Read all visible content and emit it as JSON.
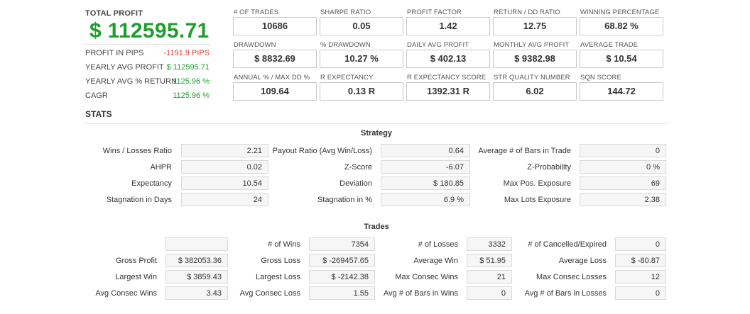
{
  "total_profit": {
    "title": "TOTAL PROFIT",
    "value": "$ 112595.71",
    "rows": [
      {
        "label": "PROFIT IN PIPS",
        "value": "-1191.9 PIPS",
        "tone": "neg"
      },
      {
        "label": "YEARLY AVG PROFIT",
        "value": "$ 112595.71",
        "tone": "pos"
      },
      {
        "label": "YEARLY AVG % RETURN",
        "value": "1125.96 %",
        "tone": "pos"
      },
      {
        "label": "CAGR",
        "value": "1125.96 %",
        "tone": "pos"
      }
    ]
  },
  "kpis": [
    {
      "label": "# OF TRADES",
      "value": "10686"
    },
    {
      "label": "SHARPE RATIO",
      "value": "0.05"
    },
    {
      "label": "PROFIT FACTOR",
      "value": "1.42"
    },
    {
      "label": "RETURN / DD RATIO",
      "value": "12.75"
    },
    {
      "label": "WINNING PERCENTAGE",
      "value": "68.82 %"
    },
    {
      "label": "DRAWDOWN",
      "value": "$ 8832.69"
    },
    {
      "label": "% DRAWDOWN",
      "value": "10.27 %"
    },
    {
      "label": "DAILY AVG PROFIT",
      "value": "$ 402.13"
    },
    {
      "label": "MONTHLY AVG PROFIT",
      "value": "$ 9382.98"
    },
    {
      "label": "AVERAGE TRADE",
      "value": "$ 10.54"
    },
    {
      "label": "ANNUAL % / MAX DD %",
      "value": "109.64"
    },
    {
      "label": "R EXPECTANCY",
      "value": "0.13 R"
    },
    {
      "label": "R EXPECTANCY SCORE",
      "value": "1392.31 R"
    },
    {
      "label": "STR QUALITY NUMBER",
      "value": "6.02"
    },
    {
      "label": "SQN SCORE",
      "value": "144.72"
    }
  ],
  "stats_title": "STATS",
  "strategy": {
    "title": "Strategy",
    "rows": [
      [
        {
          "label": "Wins / Losses Ratio",
          "value": "2.21"
        },
        {
          "label": "Payout Ratio (Avg Win/Loss)",
          "value": "0.64"
        },
        {
          "label": "Average # of Bars in Trade",
          "value": "0"
        }
      ],
      [
        {
          "label": "AHPR",
          "value": "0.02"
        },
        {
          "label": "Z-Score",
          "value": "-6.07"
        },
        {
          "label": "Z-Probability",
          "value": "0 %"
        }
      ],
      [
        {
          "label": "Expectancy",
          "value": "10.54"
        },
        {
          "label": "Deviation",
          "value": "$ 180.85"
        },
        {
          "label": "Max Pos. Exposure",
          "value": "69"
        }
      ],
      [
        {
          "label": "Stagnation in Days",
          "value": "24"
        },
        {
          "label": "Stagnation in %",
          "value": "6.9 %"
        },
        {
          "label": "Max Lots Exposure",
          "value": "2.38"
        }
      ]
    ]
  },
  "trades": {
    "title": "Trades",
    "rows": [
      [
        {
          "label": "",
          "value": ""
        },
        {
          "label": "# of Wins",
          "value": "7354"
        },
        {
          "label": "# of Losses",
          "value": "3332"
        },
        {
          "label": "# of Cancelled/Expired",
          "value": "0"
        }
      ],
      [
        {
          "label": "Gross Profit",
          "value": "$ 382053.36"
        },
        {
          "label": "Gross Loss",
          "value": "$ -269457.65"
        },
        {
          "label": "Average Win",
          "value": "$ 51.95"
        },
        {
          "label": "Average Loss",
          "value": "$ -80.87"
        }
      ],
      [
        {
          "label": "Largest Win",
          "value": "$ 3859.43"
        },
        {
          "label": "Largest Loss",
          "value": "$ -2142.38"
        },
        {
          "label": "Max Consec Wins",
          "value": "21"
        },
        {
          "label": "Max Consec Losses",
          "value": "12"
        }
      ],
      [
        {
          "label": "Avg Consec Wins",
          "value": "3.43"
        },
        {
          "label": "Avg Consec Loss",
          "value": "1.55"
        },
        {
          "label": "Avg # of Bars in Wins",
          "value": "0"
        },
        {
          "label": "Avg # of Bars in Losses",
          "value": "0"
        }
      ]
    ]
  }
}
